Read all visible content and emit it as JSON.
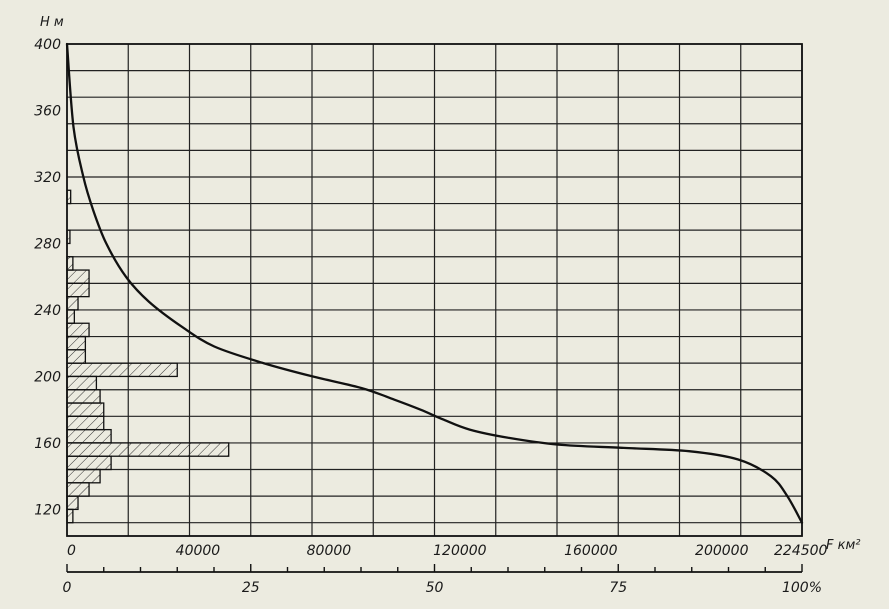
{
  "chart_data": {
    "type": "line",
    "title": "",
    "ylabel": "H м",
    "xlabel": "F км²",
    "ylim": [
      104,
      400
    ],
    "xlim": [
      0,
      224500
    ],
    "y_ticks": [
      "120",
      "160",
      "200",
      "240",
      "280",
      "320",
      "360",
      "400"
    ],
    "x_ticks": [
      "0",
      "40000",
      "80000",
      "120000",
      "160000",
      "200000",
      "224500"
    ],
    "percent_ticks": [
      "0",
      "25",
      "50",
      "75",
      "100%"
    ],
    "percent_range": [
      0,
      100
    ],
    "grid": true,
    "series": [
      {
        "kind": "hypsographic-curve",
        "x": [
          0,
          2000,
          5000,
          8000,
          12000,
          18000,
          25000,
          35000,
          45000,
          60000,
          75000,
          90000,
          100000,
          108000,
          115000,
          123000,
          135000,
          150000,
          170000,
          190000,
          205000,
          215000,
          220000,
          224500
        ],
        "y": [
          400,
          350,
          320,
          300,
          280,
          260,
          245,
          230,
          218,
          208,
          200,
          193,
          186,
          180,
          174,
          168,
          163,
          159,
          157,
          155,
          150,
          140,
          128,
          112
        ]
      },
      {
        "kind": "area-distribution-histogram",
        "pattern": "hatched",
        "bins": [
          {
            "from": 112,
            "to": 120,
            "percent": 0.8
          },
          {
            "from": 120,
            "to": 128,
            "percent": 1.5
          },
          {
            "from": 128,
            "to": 136,
            "percent": 3
          },
          {
            "from": 136,
            "to": 144,
            "percent": 4.5
          },
          {
            "from": 144,
            "to": 152,
            "percent": 6
          },
          {
            "from": 152,
            "to": 160,
            "percent": 22
          },
          {
            "from": 160,
            "to": 168,
            "percent": 6
          },
          {
            "from": 168,
            "to": 176,
            "percent": 5
          },
          {
            "from": 176,
            "to": 184,
            "percent": 5
          },
          {
            "from": 184,
            "to": 192,
            "percent": 4.5
          },
          {
            "from": 192,
            "to": 200,
            "percent": 4
          },
          {
            "from": 200,
            "to": 208,
            "percent": 15
          },
          {
            "from": 208,
            "to": 216,
            "percent": 2.5
          },
          {
            "from": 216,
            "to": 224,
            "percent": 2.5
          },
          {
            "from": 224,
            "to": 232,
            "percent": 3
          },
          {
            "from": 232,
            "to": 240,
            "percent": 1
          },
          {
            "from": 240,
            "to": 248,
            "percent": 1.5
          },
          {
            "from": 248,
            "to": 256,
            "percent": 3
          },
          {
            "from": 256,
            "to": 264,
            "percent": 3
          },
          {
            "from": 264,
            "to": 272,
            "percent": 0.8
          },
          {
            "from": 272,
            "to": 280,
            "percent": 0
          },
          {
            "from": 280,
            "to": 288,
            "percent": 0.4
          },
          {
            "from": 288,
            "to": 296,
            "percent": 0
          },
          {
            "from": 296,
            "to": 304,
            "percent": 0
          },
          {
            "from": 304,
            "to": 312,
            "percent": 0.5
          }
        ]
      }
    ]
  }
}
